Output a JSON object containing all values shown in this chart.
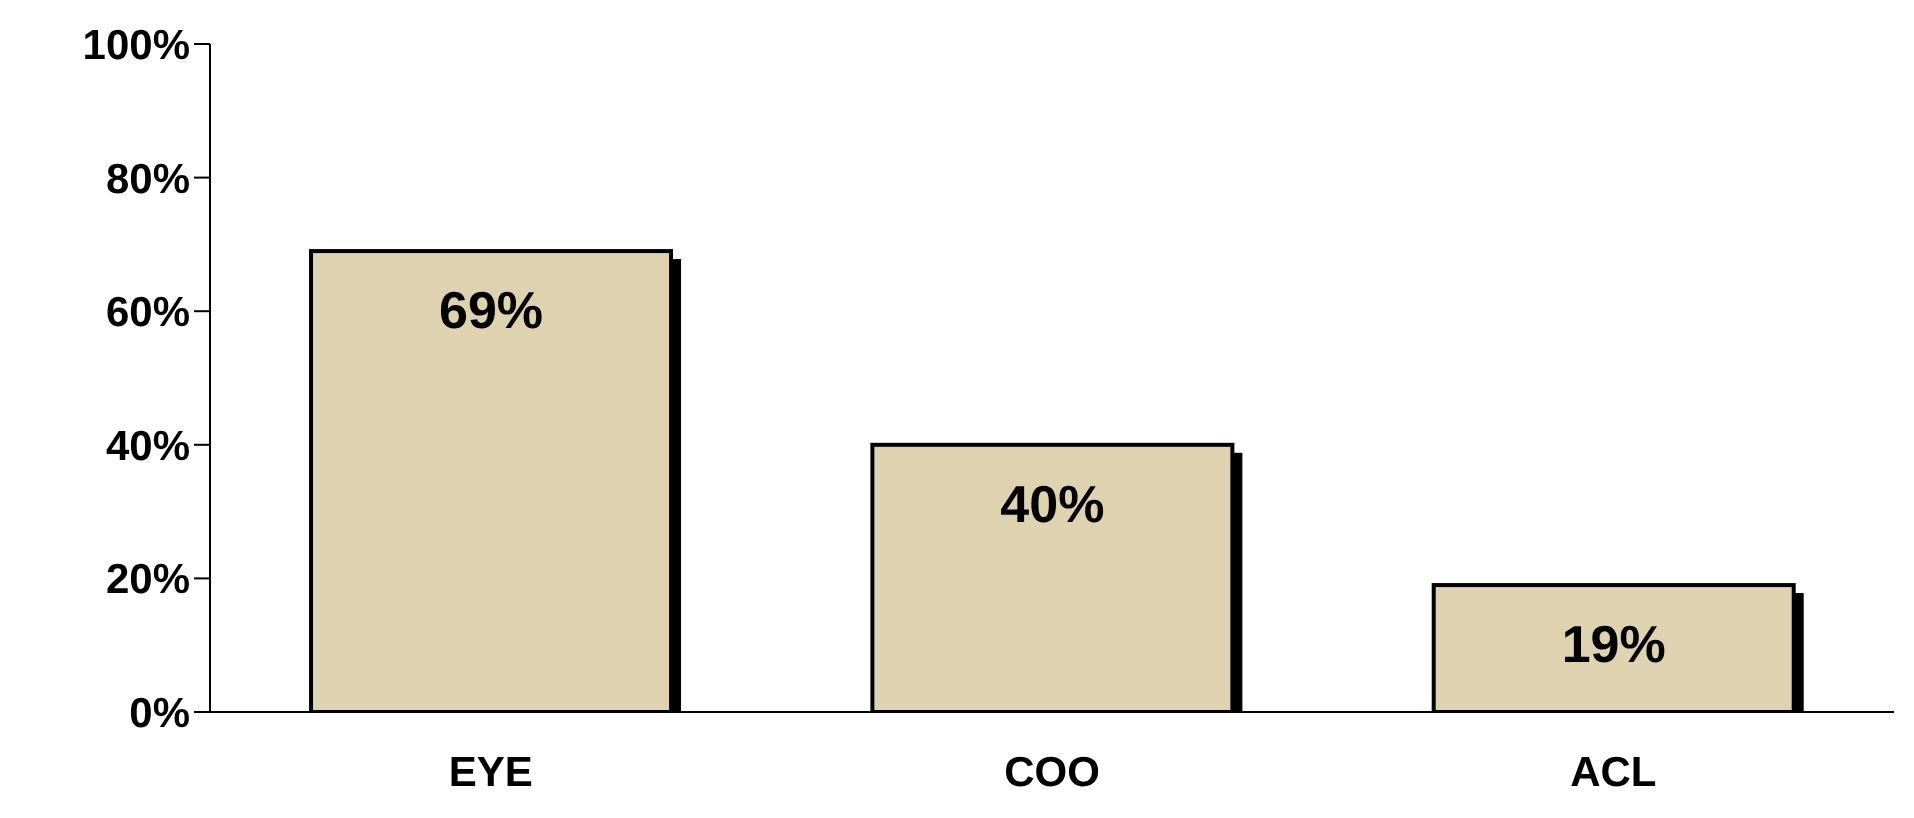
{
  "chart_data": {
    "type": "bar",
    "categories": [
      "EYE",
      "COO",
      "ACL"
    ],
    "values": [
      69,
      40,
      19
    ],
    "color": "#ded2b0",
    "value_labels": [
      "69%",
      "40%",
      "19%"
    ],
    "ylim": [
      0,
      100
    ],
    "yticks": [
      {
        "value": 0,
        "label": "0%"
      },
      {
        "value": 20,
        "label": "20%"
      },
      {
        "value": 40,
        "label": "40%"
      },
      {
        "value": 60,
        "label": "60%"
      },
      {
        "value": 80,
        "label": "80%"
      },
      {
        "value": 100,
        "label": "100%"
      }
    ],
    "grid": false,
    "legend": false
  }
}
